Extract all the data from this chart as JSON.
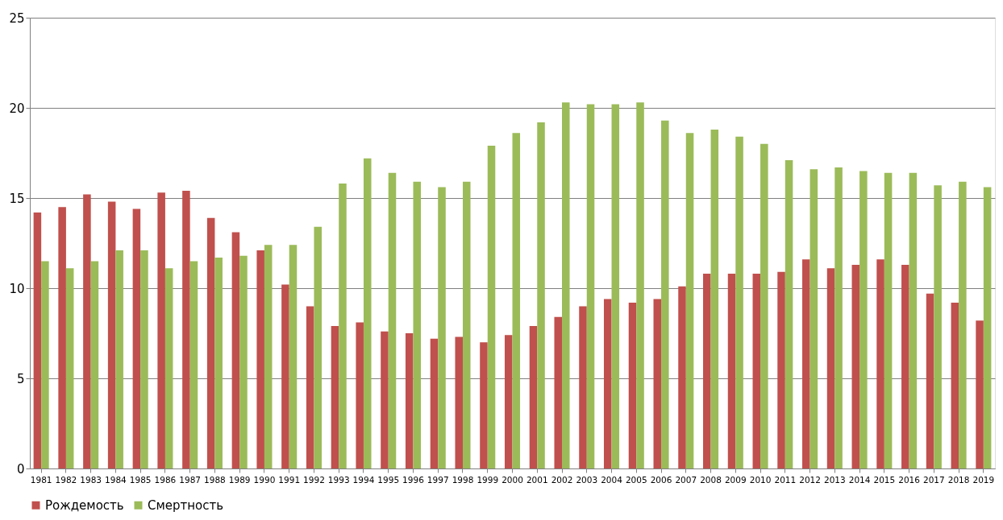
{
  "chart_data": {
    "type": "bar",
    "categories": [
      "1981",
      "1982",
      "1983",
      "1984",
      "1985",
      "1986",
      "1987",
      "1988",
      "1989",
      "1990",
      "1991",
      "1992",
      "1993",
      "1994",
      "1995",
      "1996",
      "1997",
      "1998",
      "1999",
      "2000",
      "2001",
      "2002",
      "2003",
      "2004",
      "2005",
      "2006",
      "2007",
      "2008",
      "2009",
      "2010",
      "2011",
      "2012",
      "2013",
      "2014",
      "2015",
      "2016",
      "2017",
      "2018",
      "2019"
    ],
    "series": [
      {
        "name": "Рождемость",
        "color": "#c0504d",
        "values": [
          14.2,
          14.5,
          15.2,
          14.8,
          14.4,
          15.3,
          15.4,
          13.9,
          13.1,
          12.1,
          10.2,
          9.0,
          7.9,
          8.1,
          7.6,
          7.5,
          7.2,
          7.3,
          7.0,
          7.4,
          7.9,
          8.4,
          9.0,
          9.4,
          9.2,
          9.4,
          10.1,
          10.8,
          10.8,
          10.8,
          10.9,
          11.6,
          11.1,
          11.3,
          11.6,
          11.3,
          9.7,
          9.2,
          8.2
        ]
      },
      {
        "name": "Смертность",
        "color": "#9bbb59",
        "values": [
          11.5,
          11.1,
          11.5,
          12.1,
          12.1,
          11.1,
          11.5,
          11.7,
          11.8,
          12.4,
          12.4,
          13.4,
          15.8,
          17.2,
          16.4,
          15.9,
          15.6,
          15.9,
          17.9,
          18.6,
          19.2,
          20.3,
          20.2,
          20.2,
          20.3,
          19.3,
          18.6,
          18.8,
          18.4,
          18.0,
          17.1,
          16.6,
          16.7,
          16.5,
          16.4,
          16.4,
          15.7,
          15.9,
          15.6
        ]
      }
    ],
    "ylim": [
      0,
      25
    ],
    "yticks": [
      0,
      5,
      10,
      15,
      20,
      25
    ],
    "grid": "y",
    "legend": "bottom"
  }
}
